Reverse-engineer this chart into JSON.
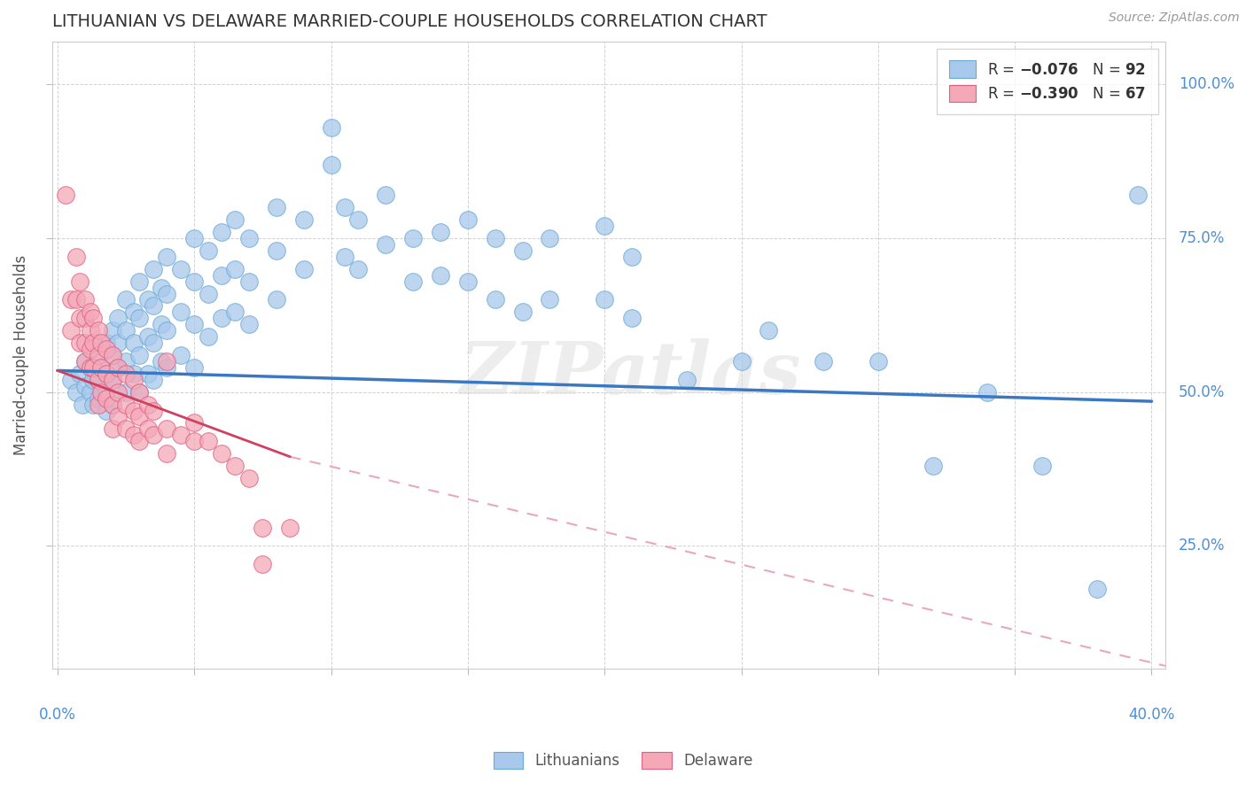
{
  "title": "LITHUANIAN VS DELAWARE MARRIED-COUPLE HOUSEHOLDS CORRELATION CHART",
  "source": "Source: ZipAtlas.com",
  "ylabel": "Married-couple Households",
  "y_ticks": [
    0.25,
    0.5,
    0.75,
    1.0
  ],
  "x_ticks": [
    0.0,
    0.05,
    0.1,
    0.15,
    0.2,
    0.25,
    0.3,
    0.35,
    0.4
  ],
  "xlim": [
    -0.002,
    0.405
  ],
  "ylim": [
    0.05,
    1.07
  ],
  "blue_color": "#A8C8EC",
  "blue_edge_color": "#6AAAD4",
  "pink_color": "#F4A8B8",
  "pink_edge_color": "#E06080",
  "blue_line_color": "#3A78C4",
  "pink_line_color": "#D04060",
  "dashed_line_color": "#E8A8B8",
  "watermark": "ZIPatlas",
  "legend_label1": "Lithuanians",
  "legend_label2": "Delaware",
  "blue_line_x": [
    0.0,
    0.4
  ],
  "blue_line_y": [
    0.535,
    0.485
  ],
  "pink_line_x": [
    0.0,
    0.085
  ],
  "pink_line_y": [
    0.535,
    0.395
  ],
  "dashed_line_x": [
    0.085,
    0.405
  ],
  "dashed_line_y": [
    0.395,
    0.055
  ],
  "blue_scatter": [
    [
      0.005,
      0.52
    ],
    [
      0.007,
      0.5
    ],
    [
      0.008,
      0.53
    ],
    [
      0.009,
      0.48
    ],
    [
      0.01,
      0.55
    ],
    [
      0.01,
      0.51
    ],
    [
      0.012,
      0.54
    ],
    [
      0.012,
      0.5
    ],
    [
      0.013,
      0.52
    ],
    [
      0.013,
      0.48
    ],
    [
      0.015,
      0.56
    ],
    [
      0.015,
      0.52
    ],
    [
      0.015,
      0.49
    ],
    [
      0.016,
      0.54
    ],
    [
      0.018,
      0.58
    ],
    [
      0.018,
      0.53
    ],
    [
      0.018,
      0.5
    ],
    [
      0.018,
      0.47
    ],
    [
      0.02,
      0.6
    ],
    [
      0.02,
      0.56
    ],
    [
      0.02,
      0.52
    ],
    [
      0.02,
      0.48
    ],
    [
      0.022,
      0.62
    ],
    [
      0.022,
      0.58
    ],
    [
      0.022,
      0.54
    ],
    [
      0.025,
      0.65
    ],
    [
      0.025,
      0.6
    ],
    [
      0.025,
      0.55
    ],
    [
      0.025,
      0.5
    ],
    [
      0.028,
      0.63
    ],
    [
      0.028,
      0.58
    ],
    [
      0.028,
      0.53
    ],
    [
      0.03,
      0.68
    ],
    [
      0.03,
      0.62
    ],
    [
      0.03,
      0.56
    ],
    [
      0.03,
      0.5
    ],
    [
      0.033,
      0.65
    ],
    [
      0.033,
      0.59
    ],
    [
      0.033,
      0.53
    ],
    [
      0.035,
      0.7
    ],
    [
      0.035,
      0.64
    ],
    [
      0.035,
      0.58
    ],
    [
      0.035,
      0.52
    ],
    [
      0.038,
      0.67
    ],
    [
      0.038,
      0.61
    ],
    [
      0.038,
      0.55
    ],
    [
      0.04,
      0.72
    ],
    [
      0.04,
      0.66
    ],
    [
      0.04,
      0.6
    ],
    [
      0.04,
      0.54
    ],
    [
      0.045,
      0.7
    ],
    [
      0.045,
      0.63
    ],
    [
      0.045,
      0.56
    ],
    [
      0.05,
      0.75
    ],
    [
      0.05,
      0.68
    ],
    [
      0.05,
      0.61
    ],
    [
      0.05,
      0.54
    ],
    [
      0.055,
      0.73
    ],
    [
      0.055,
      0.66
    ],
    [
      0.055,
      0.59
    ],
    [
      0.06,
      0.76
    ],
    [
      0.06,
      0.69
    ],
    [
      0.06,
      0.62
    ],
    [
      0.065,
      0.78
    ],
    [
      0.065,
      0.7
    ],
    [
      0.065,
      0.63
    ],
    [
      0.07,
      0.75
    ],
    [
      0.07,
      0.68
    ],
    [
      0.07,
      0.61
    ],
    [
      0.08,
      0.8
    ],
    [
      0.08,
      0.73
    ],
    [
      0.08,
      0.65
    ],
    [
      0.09,
      0.78
    ],
    [
      0.09,
      0.7
    ],
    [
      0.1,
      0.93
    ],
    [
      0.1,
      0.87
    ],
    [
      0.105,
      0.8
    ],
    [
      0.105,
      0.72
    ],
    [
      0.11,
      0.78
    ],
    [
      0.11,
      0.7
    ],
    [
      0.12,
      0.82
    ],
    [
      0.12,
      0.74
    ],
    [
      0.13,
      0.75
    ],
    [
      0.13,
      0.68
    ],
    [
      0.14,
      0.76
    ],
    [
      0.14,
      0.69
    ],
    [
      0.15,
      0.78
    ],
    [
      0.15,
      0.68
    ],
    [
      0.16,
      0.75
    ],
    [
      0.16,
      0.65
    ],
    [
      0.17,
      0.73
    ],
    [
      0.17,
      0.63
    ],
    [
      0.18,
      0.75
    ],
    [
      0.18,
      0.65
    ],
    [
      0.2,
      0.77
    ],
    [
      0.2,
      0.65
    ],
    [
      0.21,
      0.72
    ],
    [
      0.21,
      0.62
    ],
    [
      0.23,
      0.52
    ],
    [
      0.25,
      0.55
    ],
    [
      0.26,
      0.6
    ],
    [
      0.28,
      0.55
    ],
    [
      0.3,
      0.55
    ],
    [
      0.32,
      0.38
    ],
    [
      0.34,
      0.5
    ],
    [
      0.36,
      0.38
    ],
    [
      0.38,
      0.18
    ],
    [
      0.395,
      0.82
    ]
  ],
  "pink_scatter": [
    [
      0.003,
      0.82
    ],
    [
      0.005,
      0.65
    ],
    [
      0.005,
      0.6
    ],
    [
      0.007,
      0.72
    ],
    [
      0.007,
      0.65
    ],
    [
      0.008,
      0.68
    ],
    [
      0.008,
      0.62
    ],
    [
      0.008,
      0.58
    ],
    [
      0.01,
      0.65
    ],
    [
      0.01,
      0.62
    ],
    [
      0.01,
      0.58
    ],
    [
      0.01,
      0.55
    ],
    [
      0.012,
      0.63
    ],
    [
      0.012,
      0.6
    ],
    [
      0.012,
      0.57
    ],
    [
      0.012,
      0.54
    ],
    [
      0.013,
      0.62
    ],
    [
      0.013,
      0.58
    ],
    [
      0.013,
      0.54
    ],
    [
      0.015,
      0.6
    ],
    [
      0.015,
      0.56
    ],
    [
      0.015,
      0.52
    ],
    [
      0.015,
      0.48
    ],
    [
      0.016,
      0.58
    ],
    [
      0.016,
      0.54
    ],
    [
      0.016,
      0.5
    ],
    [
      0.018,
      0.57
    ],
    [
      0.018,
      0.53
    ],
    [
      0.018,
      0.49
    ],
    [
      0.02,
      0.56
    ],
    [
      0.02,
      0.52
    ],
    [
      0.02,
      0.48
    ],
    [
      0.02,
      0.44
    ],
    [
      0.022,
      0.54
    ],
    [
      0.022,
      0.5
    ],
    [
      0.022,
      0.46
    ],
    [
      0.025,
      0.53
    ],
    [
      0.025,
      0.48
    ],
    [
      0.025,
      0.44
    ],
    [
      0.028,
      0.52
    ],
    [
      0.028,
      0.47
    ],
    [
      0.028,
      0.43
    ],
    [
      0.03,
      0.5
    ],
    [
      0.03,
      0.46
    ],
    [
      0.03,
      0.42
    ],
    [
      0.033,
      0.48
    ],
    [
      0.033,
      0.44
    ],
    [
      0.035,
      0.47
    ],
    [
      0.035,
      0.43
    ],
    [
      0.04,
      0.55
    ],
    [
      0.04,
      0.44
    ],
    [
      0.04,
      0.4
    ],
    [
      0.045,
      0.43
    ],
    [
      0.05,
      0.45
    ],
    [
      0.05,
      0.42
    ],
    [
      0.055,
      0.42
    ],
    [
      0.06,
      0.4
    ],
    [
      0.065,
      0.38
    ],
    [
      0.07,
      0.36
    ],
    [
      0.075,
      0.28
    ],
    [
      0.075,
      0.22
    ],
    [
      0.085,
      0.28
    ]
  ]
}
